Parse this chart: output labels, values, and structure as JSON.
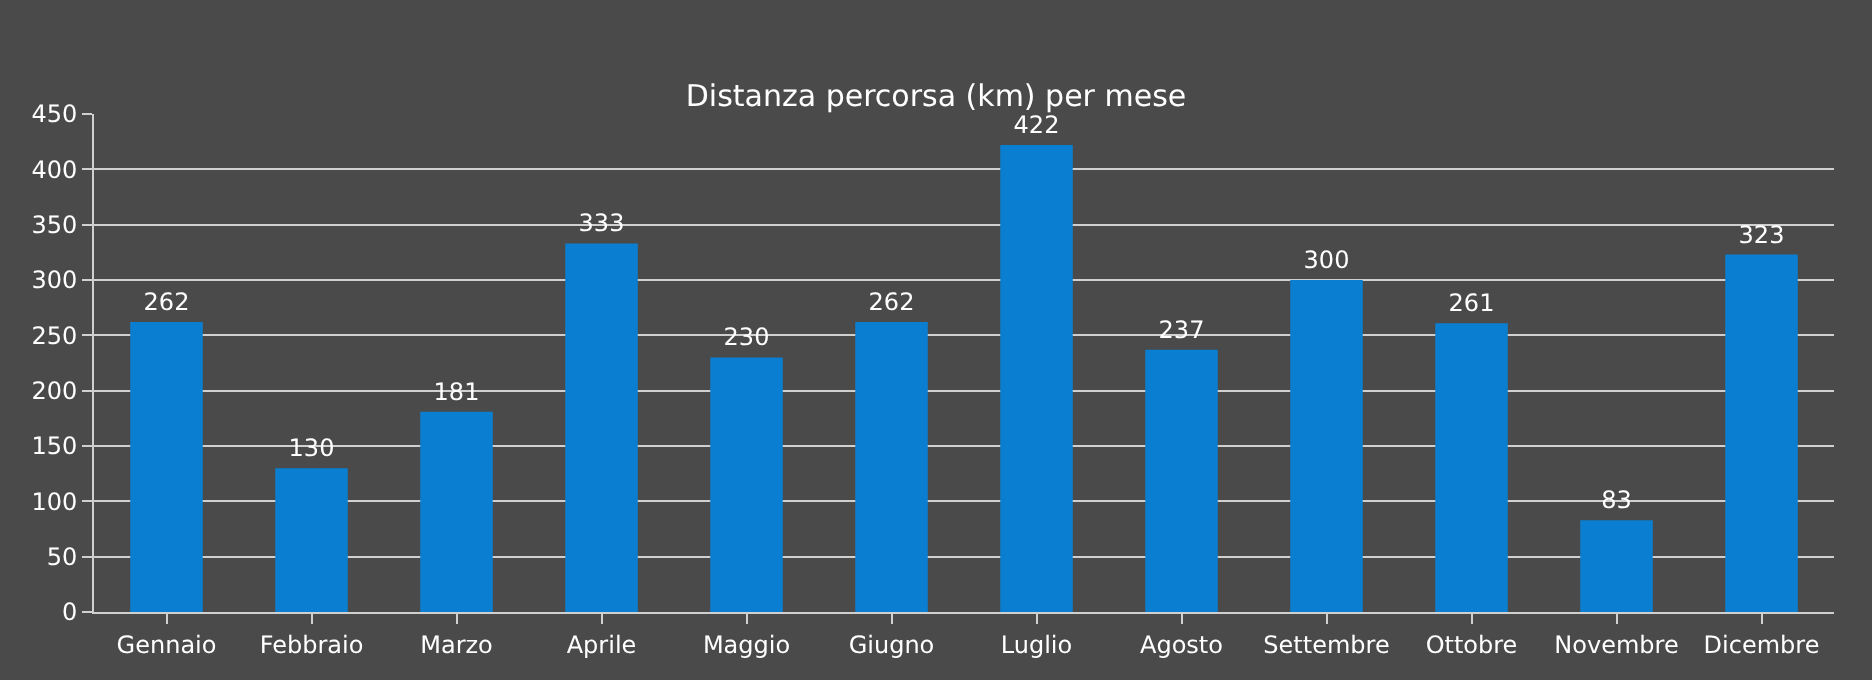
{
  "chart_data": {
    "type": "bar",
    "title": "Distanza percorsa (km) per mese",
    "categories": [
      "Gennaio",
      "Febbraio",
      "Marzo",
      "Aprile",
      "Maggio",
      "Giugno",
      "Luglio",
      "Agosto",
      "Settembre",
      "Ottobre",
      "Novembre",
      "Dicembre"
    ],
    "values": [
      262,
      130,
      181,
      333,
      230,
      262,
      422,
      237,
      300,
      261,
      83,
      323
    ],
    "color": "#0a7fd2",
    "ylim": [
      0,
      450
    ],
    "yticks": [
      0,
      50,
      100,
      150,
      200,
      250,
      300,
      350,
      400,
      450
    ],
    "grid": "y",
    "data_labels": true,
    "legend": false
  }
}
